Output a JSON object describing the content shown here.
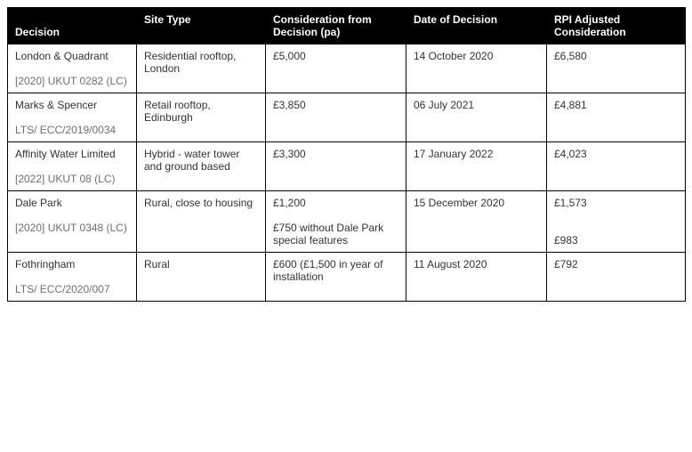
{
  "columns": {
    "decision": "Decision",
    "siteType": "Site Type",
    "consideration": "Consideration from Decision (pa)",
    "date": "Date of Decision",
    "rpi": "RPI Adjusted Consideration"
  },
  "widths": {
    "decision": 145,
    "siteType": 145,
    "consideration": 158,
    "date": 158,
    "rpi": 156
  },
  "rows": [
    {
      "decision_main": "London & Quadrant",
      "decision_ref": "[2020] UKUT 0282 (LC)",
      "siteType": "Residential rooftop, London",
      "consideration": "£5,000",
      "consideration_extra": "",
      "date": "14 October 2020",
      "rpi": "£6,580",
      "rpi_extra": ""
    },
    {
      "decision_main": "Marks & Spencer",
      "decision_ref": "LTS/ ECC/2019/0034",
      "siteType": "Retail rooftop, Edinburgh",
      "consideration": "£3,850",
      "consideration_extra": "",
      "date": "06 July 2021",
      "rpi": "£4,881",
      "rpi_extra": ""
    },
    {
      "decision_main": "Affinity Water Limited",
      "decision_ref": "[2022] UKUT 08 (LC)",
      "siteType": "Hybrid - water tower and ground based",
      "consideration": "£3,300",
      "consideration_extra": "",
      "date": "17 January 2022",
      "rpi": "£4,023",
      "rpi_extra": ""
    },
    {
      "decision_main": "Dale Park",
      "decision_ref": "[2020] UKUT 0348 (LC)",
      "siteType": "Rural, close to housing",
      "consideration": "£1,200",
      "consideration_extra": "£750 without Dale Park special features",
      "date": "15 December 2020",
      "rpi": "£1,573",
      "rpi_extra": "£983"
    },
    {
      "decision_main": "Fothringham",
      "decision_ref": "LTS/ ECC/2020/007",
      "siteType": "Rural",
      "consideration": "£600 (£1,500 in year of installation",
      "consideration_extra": "",
      "date": "11 August 2020",
      "rpi": "£792",
      "rpi_extra": ""
    }
  ]
}
